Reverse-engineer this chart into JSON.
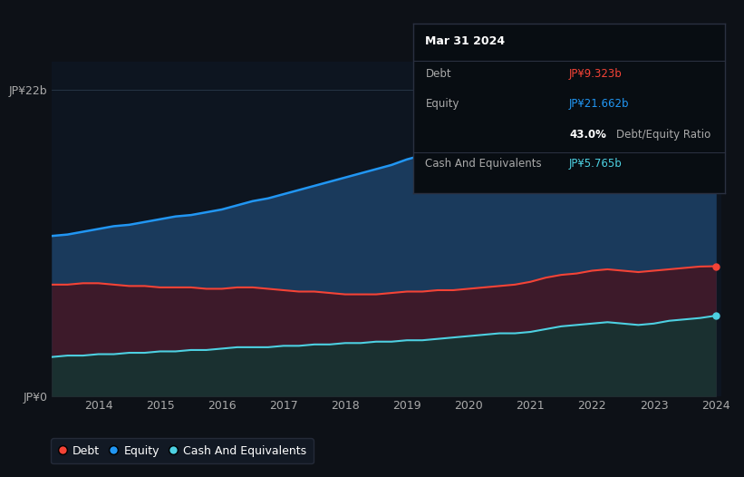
{
  "background_color": "#0d1117",
  "plot_bg_color": "#0d1520",
  "years": [
    2013.25,
    2013.5,
    2013.75,
    2014.0,
    2014.25,
    2014.5,
    2014.75,
    2015.0,
    2015.25,
    2015.5,
    2015.75,
    2016.0,
    2016.25,
    2016.5,
    2016.75,
    2017.0,
    2017.25,
    2017.5,
    2017.75,
    2018.0,
    2018.25,
    2018.5,
    2018.75,
    2019.0,
    2019.25,
    2019.5,
    2019.75,
    2020.0,
    2020.25,
    2020.5,
    2020.75,
    2021.0,
    2021.25,
    2021.5,
    2021.75,
    2022.0,
    2022.25,
    2022.5,
    2022.75,
    2023.0,
    2023.25,
    2023.5,
    2023.75,
    2024.0
  ],
  "equity": [
    11.5,
    11.6,
    11.8,
    12.0,
    12.2,
    12.3,
    12.5,
    12.7,
    12.9,
    13.0,
    13.2,
    13.4,
    13.7,
    14.0,
    14.2,
    14.5,
    14.8,
    15.1,
    15.4,
    15.7,
    16.0,
    16.3,
    16.6,
    17.0,
    17.3,
    17.6,
    18.0,
    18.3,
    18.6,
    18.9,
    19.2,
    19.5,
    19.8,
    20.1,
    20.5,
    20.9,
    21.0,
    21.1,
    21.2,
    21.3,
    21.4,
    21.5,
    21.6,
    21.662
  ],
  "debt": [
    8.0,
    8.0,
    8.1,
    8.1,
    8.0,
    7.9,
    7.9,
    7.8,
    7.8,
    7.8,
    7.7,
    7.7,
    7.8,
    7.8,
    7.7,
    7.6,
    7.5,
    7.5,
    7.4,
    7.3,
    7.3,
    7.3,
    7.4,
    7.5,
    7.5,
    7.6,
    7.6,
    7.7,
    7.8,
    7.9,
    8.0,
    8.2,
    8.5,
    8.7,
    8.8,
    9.0,
    9.1,
    9.0,
    8.9,
    9.0,
    9.1,
    9.2,
    9.3,
    9.323
  ],
  "cash": [
    2.8,
    2.9,
    2.9,
    3.0,
    3.0,
    3.1,
    3.1,
    3.2,
    3.2,
    3.3,
    3.3,
    3.4,
    3.5,
    3.5,
    3.5,
    3.6,
    3.6,
    3.7,
    3.7,
    3.8,
    3.8,
    3.9,
    3.9,
    4.0,
    4.0,
    4.1,
    4.2,
    4.3,
    4.4,
    4.5,
    4.5,
    4.6,
    4.8,
    5.0,
    5.1,
    5.2,
    5.3,
    5.2,
    5.1,
    5.2,
    5.4,
    5.5,
    5.6,
    5.765
  ],
  "equity_color": "#2196f3",
  "debt_color": "#f44336",
  "cash_color": "#4dd0e1",
  "equity_fill": "#1a3a5c",
  "debt_fill": "#3d1a2a",
  "cash_fill": "#1a3030",
  "ylim": [
    0,
    24
  ],
  "xlim": [
    2013.25,
    2024.1
  ],
  "yticks_labels": [
    "JP¥0",
    "JP¥22b"
  ],
  "yticks_values": [
    0,
    22
  ],
  "xtick_labels": [
    "2014",
    "2015",
    "2016",
    "2017",
    "2018",
    "2019",
    "2020",
    "2021",
    "2022",
    "2023",
    "2024"
  ],
  "xtick_values": [
    2014,
    2015,
    2016,
    2017,
    2018,
    2019,
    2020,
    2021,
    2022,
    2023,
    2024
  ],
  "tooltip_title": "Mar 31 2024",
  "tooltip_debt_label": "Debt",
  "tooltip_debt_value": "JP¥9.323b",
  "tooltip_equity_label": "Equity",
  "tooltip_equity_value": "JP¥21.662b",
  "tooltip_ratio": "43.0%",
  "tooltip_ratio_label": "Debt/Equity Ratio",
  "tooltip_cash_label": "Cash And Equivalents",
  "tooltip_cash_value": "JP¥5.765b",
  "legend_debt": "Debt",
  "legend_equity": "Equity",
  "legend_cash": "Cash And Equivalents"
}
